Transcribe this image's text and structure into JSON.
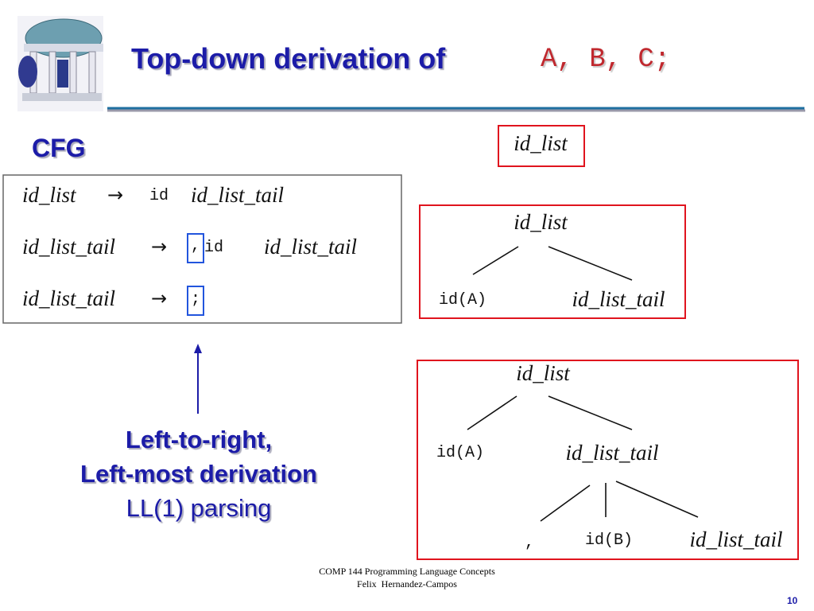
{
  "header": {
    "title": "Top-down derivation of",
    "title_code": "A, B, C;"
  },
  "cfg": {
    "label": "CFG",
    "rules": [
      {
        "lhs": "id_list",
        "arrow": "→",
        "rhs": [
          "id",
          "id_list_tail"
        ]
      },
      {
        "lhs": "id_list_tail",
        "arrow": "→",
        "rhs": [
          ",",
          "id",
          "id_list_tail"
        ]
      },
      {
        "lhs": "id_list_tail",
        "arrow": "→",
        "rhs": [
          ";"
        ]
      }
    ]
  },
  "trees": [
    {
      "root": "id_list"
    },
    {
      "root": "id_list",
      "children": [
        "id(A)",
        "id_list_tail"
      ]
    },
    {
      "root": "id_list",
      "children": [
        "id(A)",
        "id_list_tail"
      ],
      "grandchildren": [
        ",",
        "id(B)",
        "id_list_tail"
      ]
    }
  ],
  "annotation": {
    "lines": [
      "Left-to-right,",
      "Left-most derivation"
    ],
    "note": "LL(1) parsing"
  },
  "footer": {
    "course": "COMP 144 Programming Language Concepts",
    "author": "Felix  Hernandez-Campos",
    "page": "10"
  }
}
